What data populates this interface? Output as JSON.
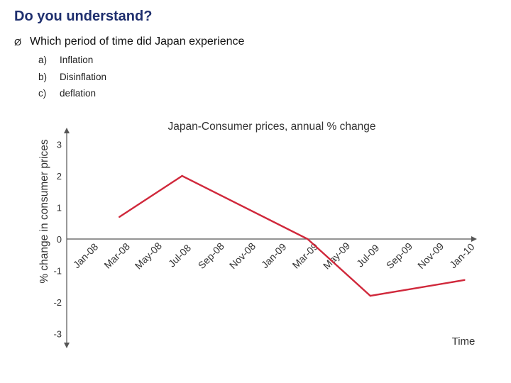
{
  "slide": {
    "title": "Do you understand?",
    "bullet_icon": "arrow-bullet-icon",
    "bullet_glyph": "Ø",
    "question": "Which period of time did Japan experience",
    "options": [
      {
        "marker": "a)",
        "text": "Inflation"
      },
      {
        "marker": "b)",
        "text": "Disinflation"
      },
      {
        "marker": "c)",
        "text": "deflation"
      }
    ]
  },
  "chart_data": {
    "type": "line",
    "title": "Japan-Consumer prices, annual % change",
    "xlabel": "Time",
    "ylabel": "% change in consumer prices",
    "categories": [
      "Jan-08",
      "Mar-08",
      "May-08",
      "Jul-08",
      "Sep-08",
      "Nov-08",
      "Jan-09",
      "Mar-09",
      "May-09",
      "Jul-09",
      "Sep-09",
      "Nov-09",
      "Jan-10"
    ],
    "y_ticks": [
      3,
      2,
      1,
      0,
      -1,
      -2,
      -3
    ],
    "ylim": [
      -3,
      3
    ],
    "series": [
      {
        "color": "#d0283b",
        "points": [
          {
            "x": "Mar-08",
            "y": 0.7
          },
          {
            "x": "Jul-08",
            "y": 2.0
          },
          {
            "x": "Mar-09",
            "y": 0.0
          },
          {
            "x": "Jul-09",
            "y": -1.8
          },
          {
            "x": "Jan-10",
            "y": -1.3
          }
        ]
      }
    ],
    "grid": false,
    "axis_color": "#555555"
  }
}
